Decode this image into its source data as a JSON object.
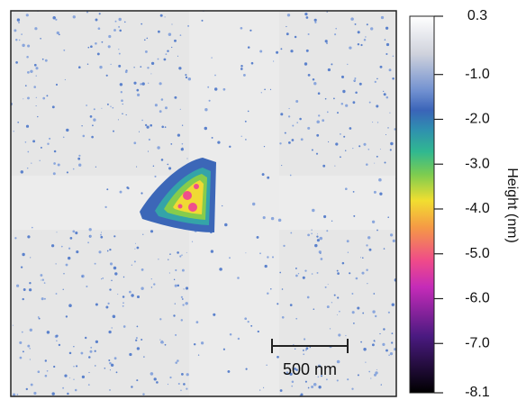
{
  "colorbar": {
    "label": "Height (nm)",
    "range": [
      -8.1,
      0.3
    ],
    "ticks": [
      0.3,
      {
        "value": -1,
        "label": "-1.0"
      },
      {
        "value": -2,
        "label": "-2.0"
      },
      {
        "value": -3,
        "label": "-3.0"
      },
      {
        "value": -4,
        "label": "-4.0"
      },
      {
        "value": -5,
        "label": "-5.0"
      },
      {
        "value": -6,
        "label": "-6.0"
      },
      {
        "value": -7,
        "label": "-7.0"
      },
      -8.1
    ]
  },
  "scale_bar": {
    "label": "500 nm"
  }
}
